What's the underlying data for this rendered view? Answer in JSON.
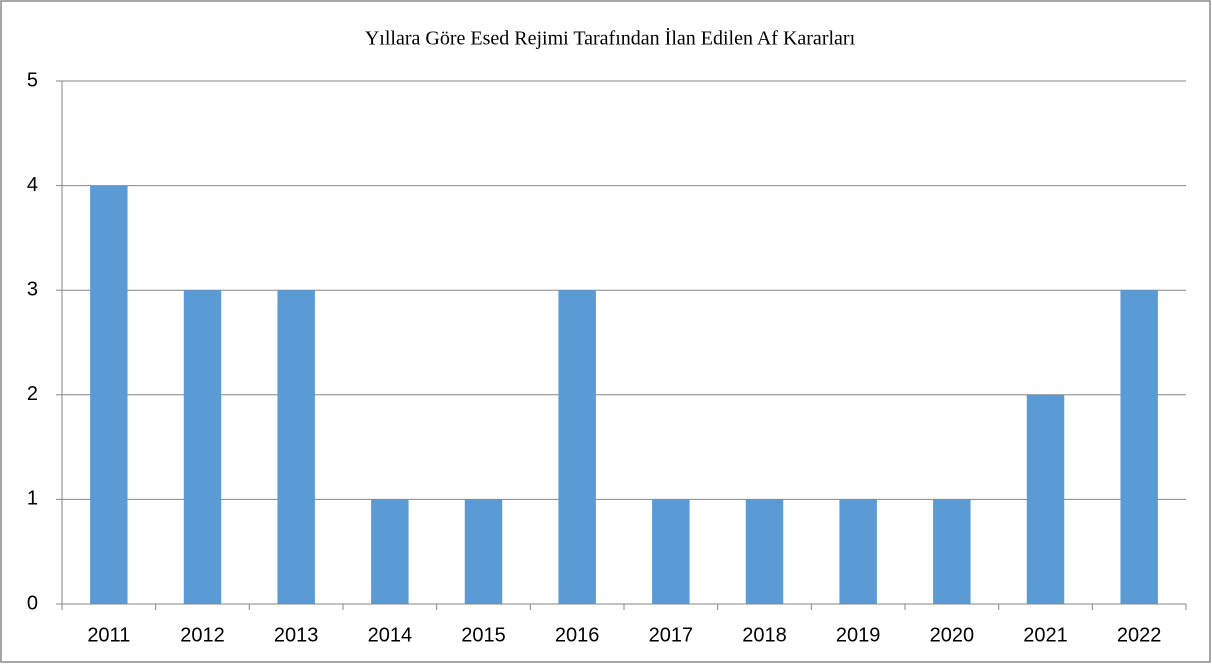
{
  "chart_data": {
    "type": "bar",
    "title": "Yıllara Göre Esed Rejimi Tarafından İlan Edilen Af Kararları",
    "categories": [
      "2011",
      "2012",
      "2013",
      "2014",
      "2015",
      "2016",
      "2017",
      "2018",
      "2019",
      "2020",
      "2021",
      "2022"
    ],
    "values": [
      4,
      3,
      3,
      1,
      1,
      3,
      1,
      1,
      1,
      1,
      2,
      3
    ],
    "color": "#5b9bd5",
    "ylim": [
      0,
      5
    ],
    "yticks": [
      0,
      1,
      2,
      3,
      4,
      5
    ],
    "grid": true
  }
}
